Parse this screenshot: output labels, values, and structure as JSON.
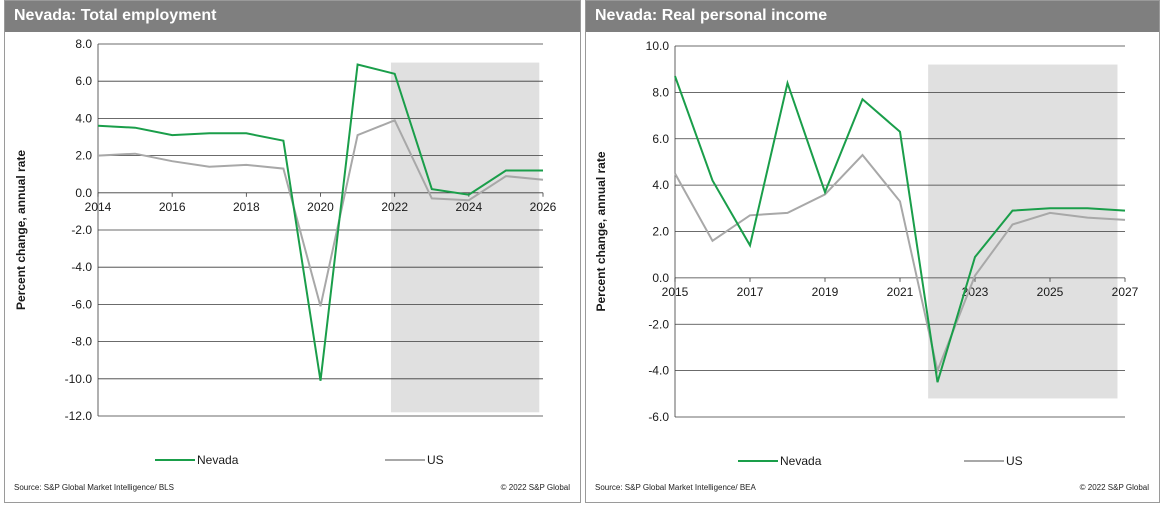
{
  "chart_data": [
    {
      "type": "line",
      "title": "Nevada: Total employment",
      "xlabel": "",
      "ylabel": "Percent change, annual rate",
      "x": [
        2014,
        2015,
        2016,
        2017,
        2018,
        2019,
        2020,
        2021,
        2022,
        2023,
        2024,
        2025,
        2026
      ],
      "xlim": [
        2014,
        2026
      ],
      "ylim": [
        -12,
        8
      ],
      "yticks": [
        8.0,
        6.0,
        4.0,
        2.0,
        0.0,
        -2.0,
        -4.0,
        -6.0,
        -8.0,
        -10.0,
        -12.0
      ],
      "ytick_labels": [
        "8.0",
        "6.0",
        "4.0",
        "2.0",
        "0.0",
        "-2.0",
        "-4.0",
        "-6.0",
        "-8.0",
        "-10.0",
        "-12.0"
      ],
      "xticks": [
        2014,
        2016,
        2018,
        2020,
        2022,
        2024,
        2026
      ],
      "xtick_labels": [
        "2014",
        "2016",
        "2018",
        "2020",
        "2022",
        "2024",
        "2026"
      ],
      "forecast_shading": {
        "x_from": 2021.9,
        "x_to": 2025.9,
        "y_from": -11.8,
        "y_to": 7.0
      },
      "grid": "horizontal",
      "legend_position": "bottom",
      "series": [
        {
          "name": "Nevada",
          "color": "#1a9e4a",
          "values": [
            3.6,
            3.5,
            3.1,
            3.2,
            3.2,
            2.8,
            -10.1,
            6.9,
            6.4,
            0.2,
            -0.1,
            1.2,
            1.2
          ]
        },
        {
          "name": "US",
          "color": "#a8a8a8",
          "values": [
            2.0,
            2.1,
            1.7,
            1.4,
            1.5,
            1.3,
            -6.1,
            3.1,
            3.9,
            -0.3,
            -0.4,
            0.9,
            0.7
          ]
        }
      ],
      "source": "Source: S&P Global Market Intelligence/ BLS",
      "copyright": "© 2022 S&P Global"
    },
    {
      "type": "line",
      "title": "Nevada: Real personal income",
      "xlabel": "",
      "ylabel": "Percent change, annual rate",
      "x": [
        2015,
        2016,
        2017,
        2018,
        2019,
        2020,
        2021,
        2022,
        2023,
        2024,
        2025,
        2026,
        2027
      ],
      "xlim": [
        2015,
        2027
      ],
      "ylim": [
        -6,
        10
      ],
      "yticks": [
        10.0,
        8.0,
        6.0,
        4.0,
        2.0,
        0.0,
        -2.0,
        -4.0,
        -6.0
      ],
      "ytick_labels": [
        "10.0",
        "8.0",
        "6.0",
        "4.0",
        "2.0",
        "0.0",
        "-2.0",
        "-4.0",
        "-6.0"
      ],
      "xticks": [
        2015,
        2017,
        2019,
        2021,
        2023,
        2025,
        2027
      ],
      "xtick_labels": [
        "2015",
        "2017",
        "2019",
        "2021",
        "2023",
        "2025",
        "2027"
      ],
      "forecast_shading": {
        "x_from": 2021.75,
        "x_to": 2026.8,
        "y_from": -5.2,
        "y_to": 9.2
      },
      "grid": "horizontal",
      "legend_position": "bottom",
      "series": [
        {
          "name": "Nevada",
          "color": "#1a9e4a",
          "values": [
            8.7,
            4.2,
            1.4,
            8.4,
            3.7,
            7.7,
            6.3,
            -4.5,
            0.9,
            2.9,
            3.0,
            3.0,
            2.9
          ]
        },
        {
          "name": "US",
          "color": "#a8a8a8",
          "values": [
            4.5,
            1.6,
            2.7,
            2.8,
            3.6,
            5.3,
            3.3,
            -4.0,
            0.1,
            2.3,
            2.8,
            2.6,
            2.5
          ]
        }
      ],
      "source": "Source: S&P Global Market Intelligence/ BEA",
      "copyright": "© 2022 S&P Global"
    }
  ]
}
